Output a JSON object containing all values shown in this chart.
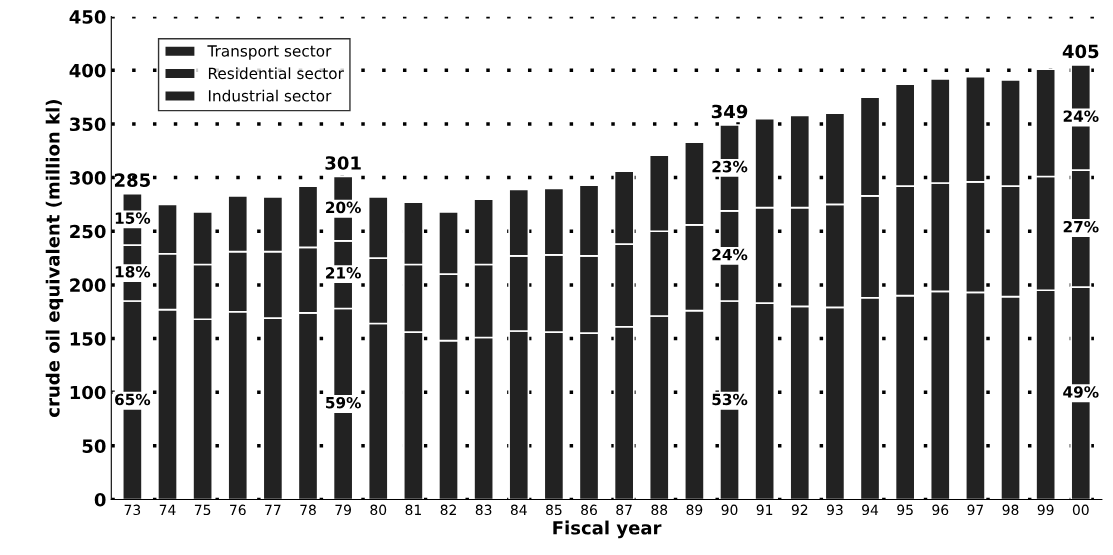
{
  "chart_data": {
    "type": "bar",
    "stacked": true,
    "xlabel": "Fiscal year",
    "ylabel": "crude oil equivalent (million kl)",
    "categories": [
      "73",
      "74",
      "75",
      "76",
      "77",
      "78",
      "79",
      "80",
      "81",
      "82",
      "83",
      "84",
      "85",
      "86",
      "87",
      "88",
      "89",
      "90",
      "91",
      "92",
      "93",
      "94",
      "95",
      "96",
      "97",
      "98",
      "99",
      "00"
    ],
    "series": [
      {
        "name": "Industrial sector",
        "color": "#222222",
        "values": [
          185,
          177,
          168,
          175,
          169,
          174,
          178,
          164,
          156,
          148,
          151,
          157,
          156,
          155,
          161,
          171,
          176,
          185,
          183,
          180,
          179,
          188,
          190,
          194,
          193,
          189,
          195,
          198
        ]
      },
      {
        "name": "Residential sector",
        "color": "#222222",
        "values": [
          52,
          52,
          51,
          56,
          62,
          61,
          63,
          61,
          63,
          62,
          68,
          70,
          72,
          72,
          77,
          79,
          80,
          84,
          89,
          92,
          96,
          95,
          102,
          101,
          103,
          103,
          106,
          109
        ]
      },
      {
        "name": "Transport sector",
        "color": "#222222",
        "values": [
          48,
          46,
          49,
          52,
          51,
          57,
          60,
          57,
          58,
          58,
          61,
          62,
          62,
          66,
          68,
          71,
          77,
          80,
          83,
          86,
          85,
          92,
          95,
          97,
          98,
          99,
          100,
          98
        ]
      }
    ],
    "annotations": [
      {
        "text": "65%",
        "x": "73",
        "y": 92
      },
      {
        "text": "18%",
        "x": "73",
        "y": 211
      },
      {
        "text": "15%",
        "x": "73",
        "y": 261
      },
      {
        "text": "59%",
        "x": "79",
        "y": 89
      },
      {
        "text": "21%",
        "x": "79",
        "y": 210
      },
      {
        "text": "20%",
        "x": "79",
        "y": 271
      },
      {
        "text": "53%",
        "x": "90",
        "y": 92
      },
      {
        "text": "24%",
        "x": "90",
        "y": 227
      },
      {
        "text": "23%",
        "x": "90",
        "y": 309
      },
      {
        "text": "49%",
        "x": "00",
        "y": 99
      },
      {
        "text": "27%",
        "x": "00",
        "y": 253
      },
      {
        "text": "24%",
        "x": "00",
        "y": 356
      }
    ],
    "totals": [
      "285",
      null,
      null,
      null,
      null,
      null,
      "301",
      null,
      null,
      null,
      null,
      null,
      null,
      null,
      null,
      null,
      null,
      "349",
      null,
      null,
      null,
      null,
      null,
      null,
      null,
      null,
      null,
      "405"
    ],
    "ylim": [
      0,
      450
    ],
    "yticks": [
      0,
      50,
      100,
      150,
      200,
      250,
      300,
      350,
      400,
      450
    ],
    "grid": "y",
    "legend": "top left"
  }
}
